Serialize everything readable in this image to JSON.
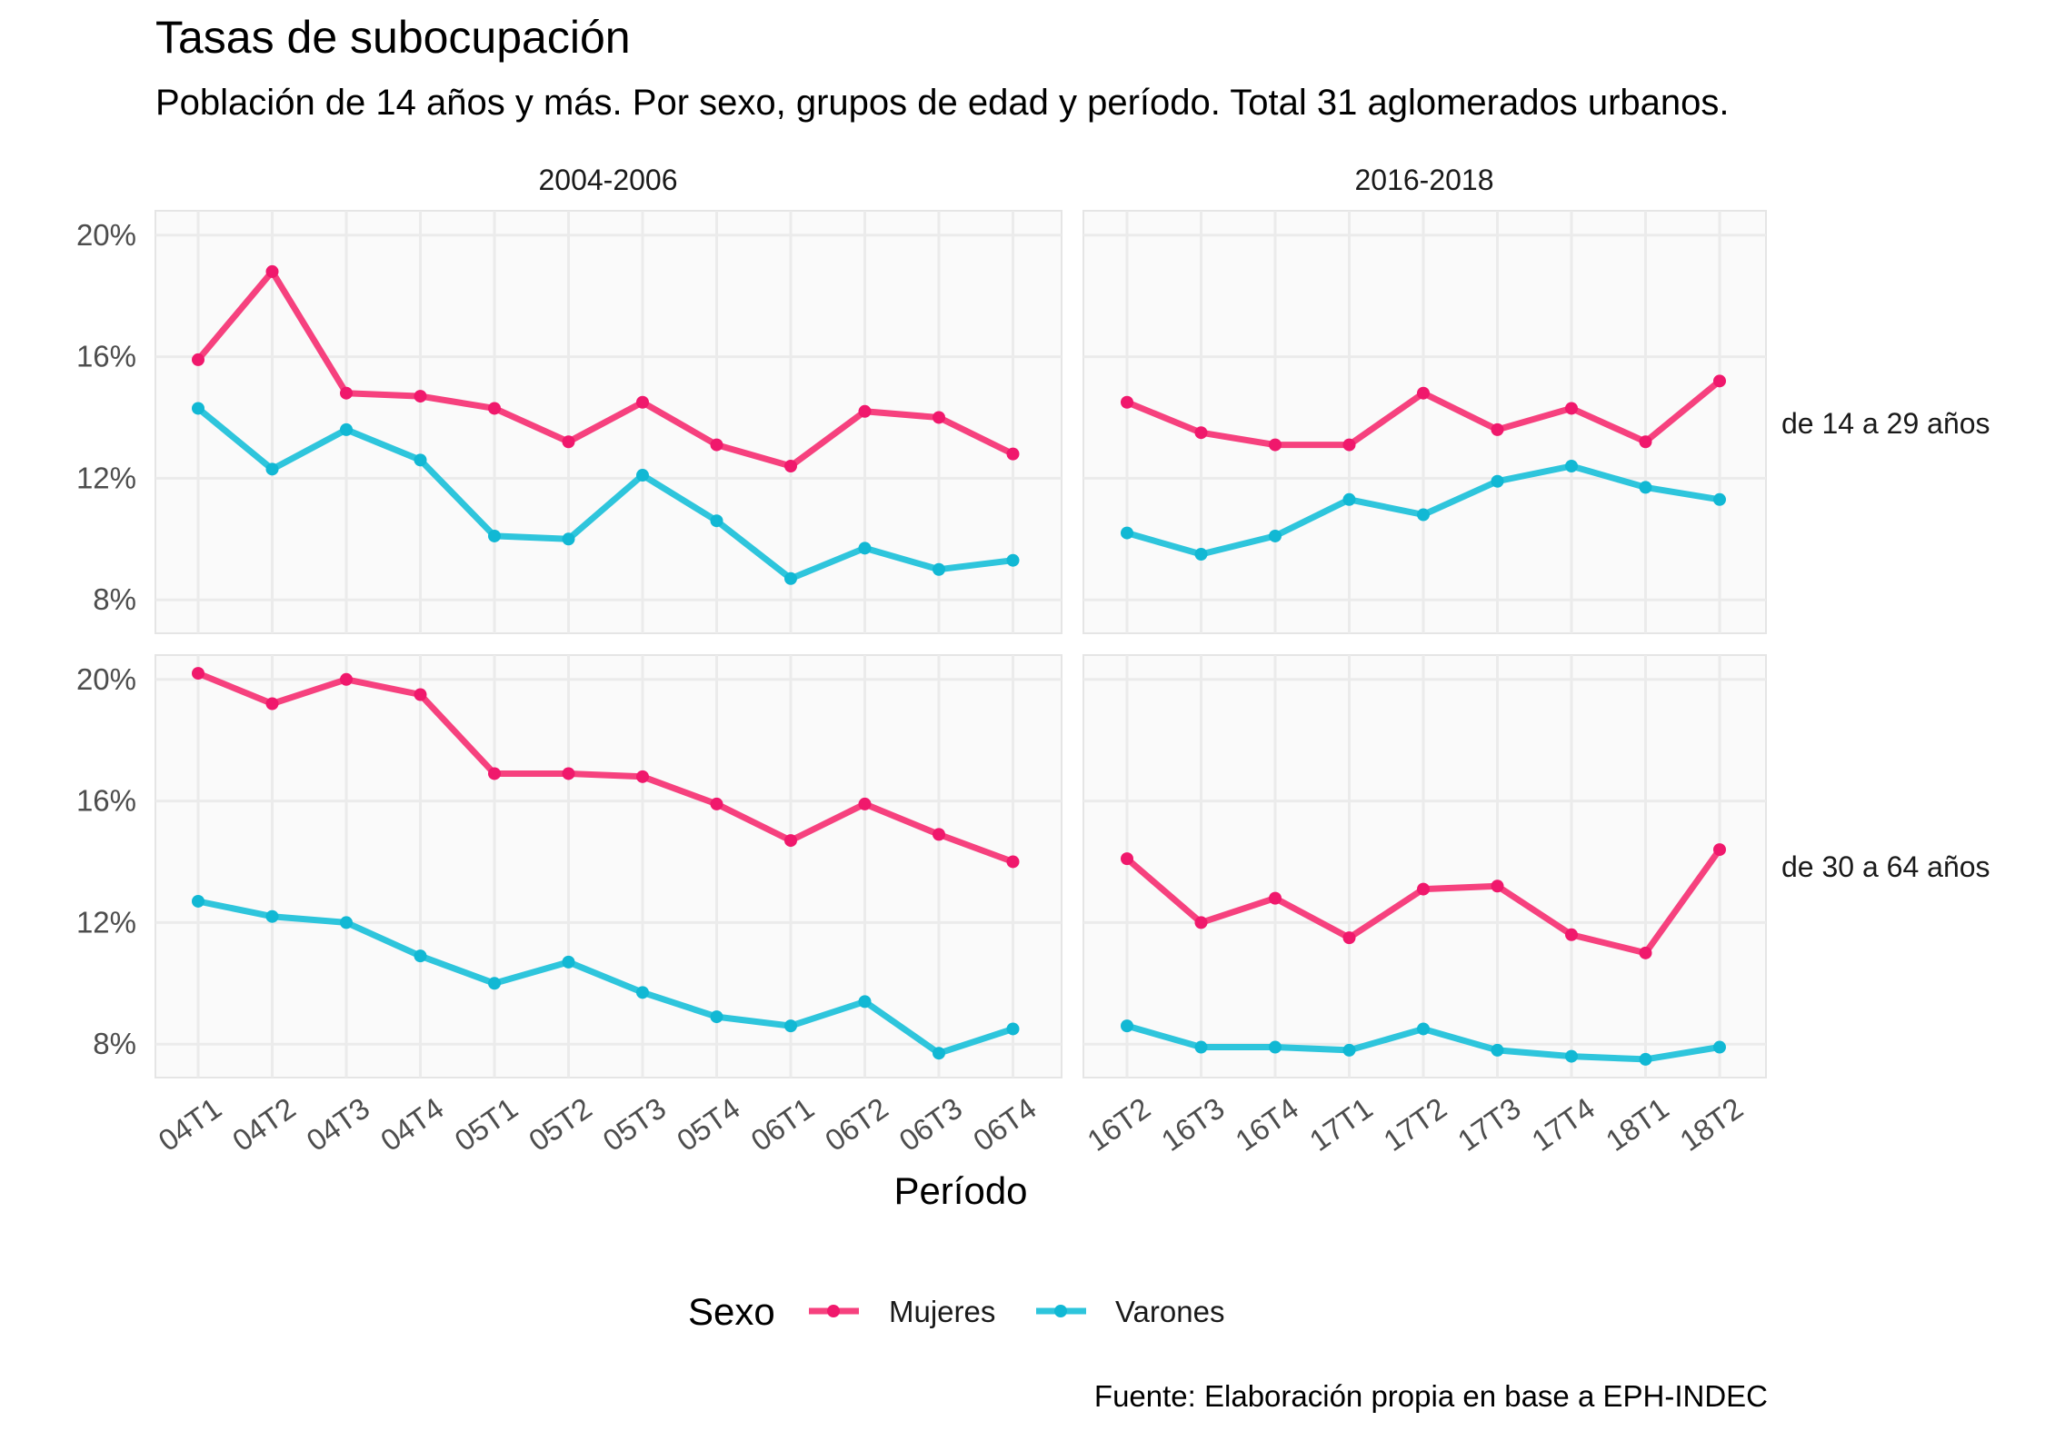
{
  "chart_data": {
    "type": "line",
    "title": "Tasas de subocupación",
    "subtitle": "Población de 14 años y más. Por sexo, grupos de edad y período. Total 31 aglomerados urbanos.",
    "xlabel": "Período",
    "ylabel": "",
    "caption": "Fuente: Elaboración propia en base a EPH-INDEC",
    "legend": {
      "title": "Sexo",
      "position": "bottom"
    },
    "grid": true,
    "ylim": [
      0.069,
      0.208
    ],
    "yticks": [
      0.08,
      0.12,
      0.16,
      0.2
    ],
    "ytick_labels": [
      "8%",
      "12%",
      "16%",
      "20%"
    ],
    "series_colors": {
      "Mujeres": "#f6417e",
      "Varones": "#2ec5dc"
    },
    "point_colors": {
      "Mujeres": "#f0186c",
      "Varones": "#11b8d4"
    },
    "column_facets": [
      {
        "label": "2004-2006",
        "categories": [
          "04T1",
          "04T2",
          "04T3",
          "04T4",
          "05T1",
          "05T2",
          "05T3",
          "05T4",
          "06T1",
          "06T2",
          "06T3",
          "06T4"
        ]
      },
      {
        "label": "2016-2018",
        "categories": [
          "16T2",
          "16T3",
          "16T4",
          "17T1",
          "17T2",
          "17T3",
          "17T4",
          "18T1",
          "18T2"
        ]
      }
    ],
    "row_facets": [
      "de 14 a 29 años",
      "de 30 a 64 años"
    ],
    "panels": [
      {
        "row": 0,
        "col": 0,
        "series": [
          {
            "name": "Mujeres",
            "values": [
              0.159,
              0.188,
              0.148,
              0.147,
              0.143,
              0.132,
              0.145,
              0.131,
              0.124,
              0.142,
              0.14,
              0.128
            ]
          },
          {
            "name": "Varones",
            "values": [
              0.143,
              0.123,
              0.136,
              0.126,
              0.101,
              0.1,
              0.121,
              0.106,
              0.087,
              0.097,
              0.09,
              0.093
            ]
          }
        ]
      },
      {
        "row": 0,
        "col": 1,
        "series": [
          {
            "name": "Mujeres",
            "values": [
              0.145,
              0.135,
              0.131,
              0.131,
              0.148,
              0.136,
              0.143,
              0.132,
              0.152
            ]
          },
          {
            "name": "Varones",
            "values": [
              0.102,
              0.095,
              0.101,
              0.113,
              0.108,
              0.119,
              0.124,
              0.117,
              0.113
            ]
          }
        ]
      },
      {
        "row": 1,
        "col": 0,
        "series": [
          {
            "name": "Mujeres",
            "values": [
              0.202,
              0.192,
              0.2,
              0.195,
              0.169,
              0.169,
              0.168,
              0.159,
              0.147,
              0.159,
              0.149,
              0.14
            ]
          },
          {
            "name": "Varones",
            "values": [
              0.127,
              0.122,
              0.12,
              0.109,
              0.1,
              0.107,
              0.097,
              0.089,
              0.086,
              0.094,
              0.077,
              0.085
            ]
          }
        ]
      },
      {
        "row": 1,
        "col": 1,
        "series": [
          {
            "name": "Mujeres",
            "values": [
              0.141,
              0.12,
              0.128,
              0.115,
              0.131,
              0.132,
              0.116,
              0.11,
              0.144
            ]
          },
          {
            "name": "Varones",
            "values": [
              0.086,
              0.079,
              0.079,
              0.078,
              0.085,
              0.078,
              0.076,
              0.075,
              0.079
            ]
          }
        ]
      }
    ]
  }
}
